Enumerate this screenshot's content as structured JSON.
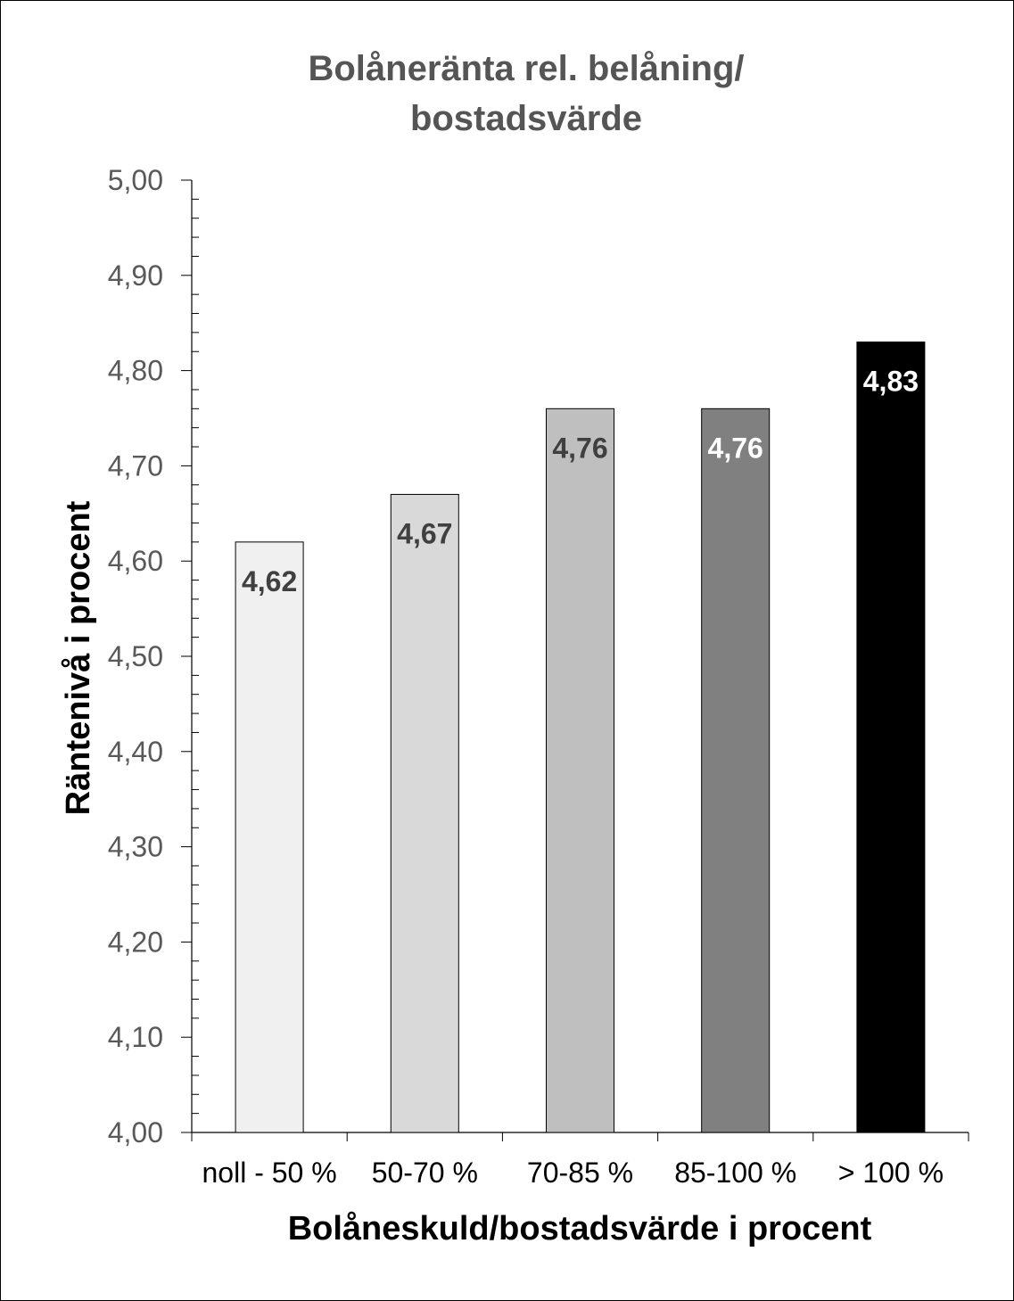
{
  "chart_data": {
    "type": "bar",
    "title_lines": [
      "Bolåneränta rel. belåning/",
      "bostadsvärde"
    ],
    "xlabel": "Bolåneskuld/bostadsvärde i procent",
    "ylabel": "Räntenivå i procent",
    "categories": [
      "noll - 50 %",
      "50-70 %",
      "70-85 %",
      "85-100 %",
      "> 100 %"
    ],
    "values": [
      4.62,
      4.67,
      4.76,
      4.76,
      4.83
    ],
    "data_labels": [
      "4,62",
      "4,67",
      "4,76",
      "4,76",
      "4,83"
    ],
    "bar_colors": [
      "#f0f0f0",
      "#d9d9d9",
      "#bfbfbf",
      "#808080",
      "#000000"
    ],
    "label_colors": [
      "#404040",
      "#404040",
      "#404040",
      "#ffffff",
      "#ffffff"
    ],
    "ylim": [
      4.0,
      5.0
    ],
    "yticks": [
      "4,00",
      "4,10",
      "4,20",
      "4,30",
      "4,40",
      "4,50",
      "4,60",
      "4,70",
      "4,80",
      "4,90",
      "5,00"
    ],
    "grid": false,
    "legend": "none"
  }
}
